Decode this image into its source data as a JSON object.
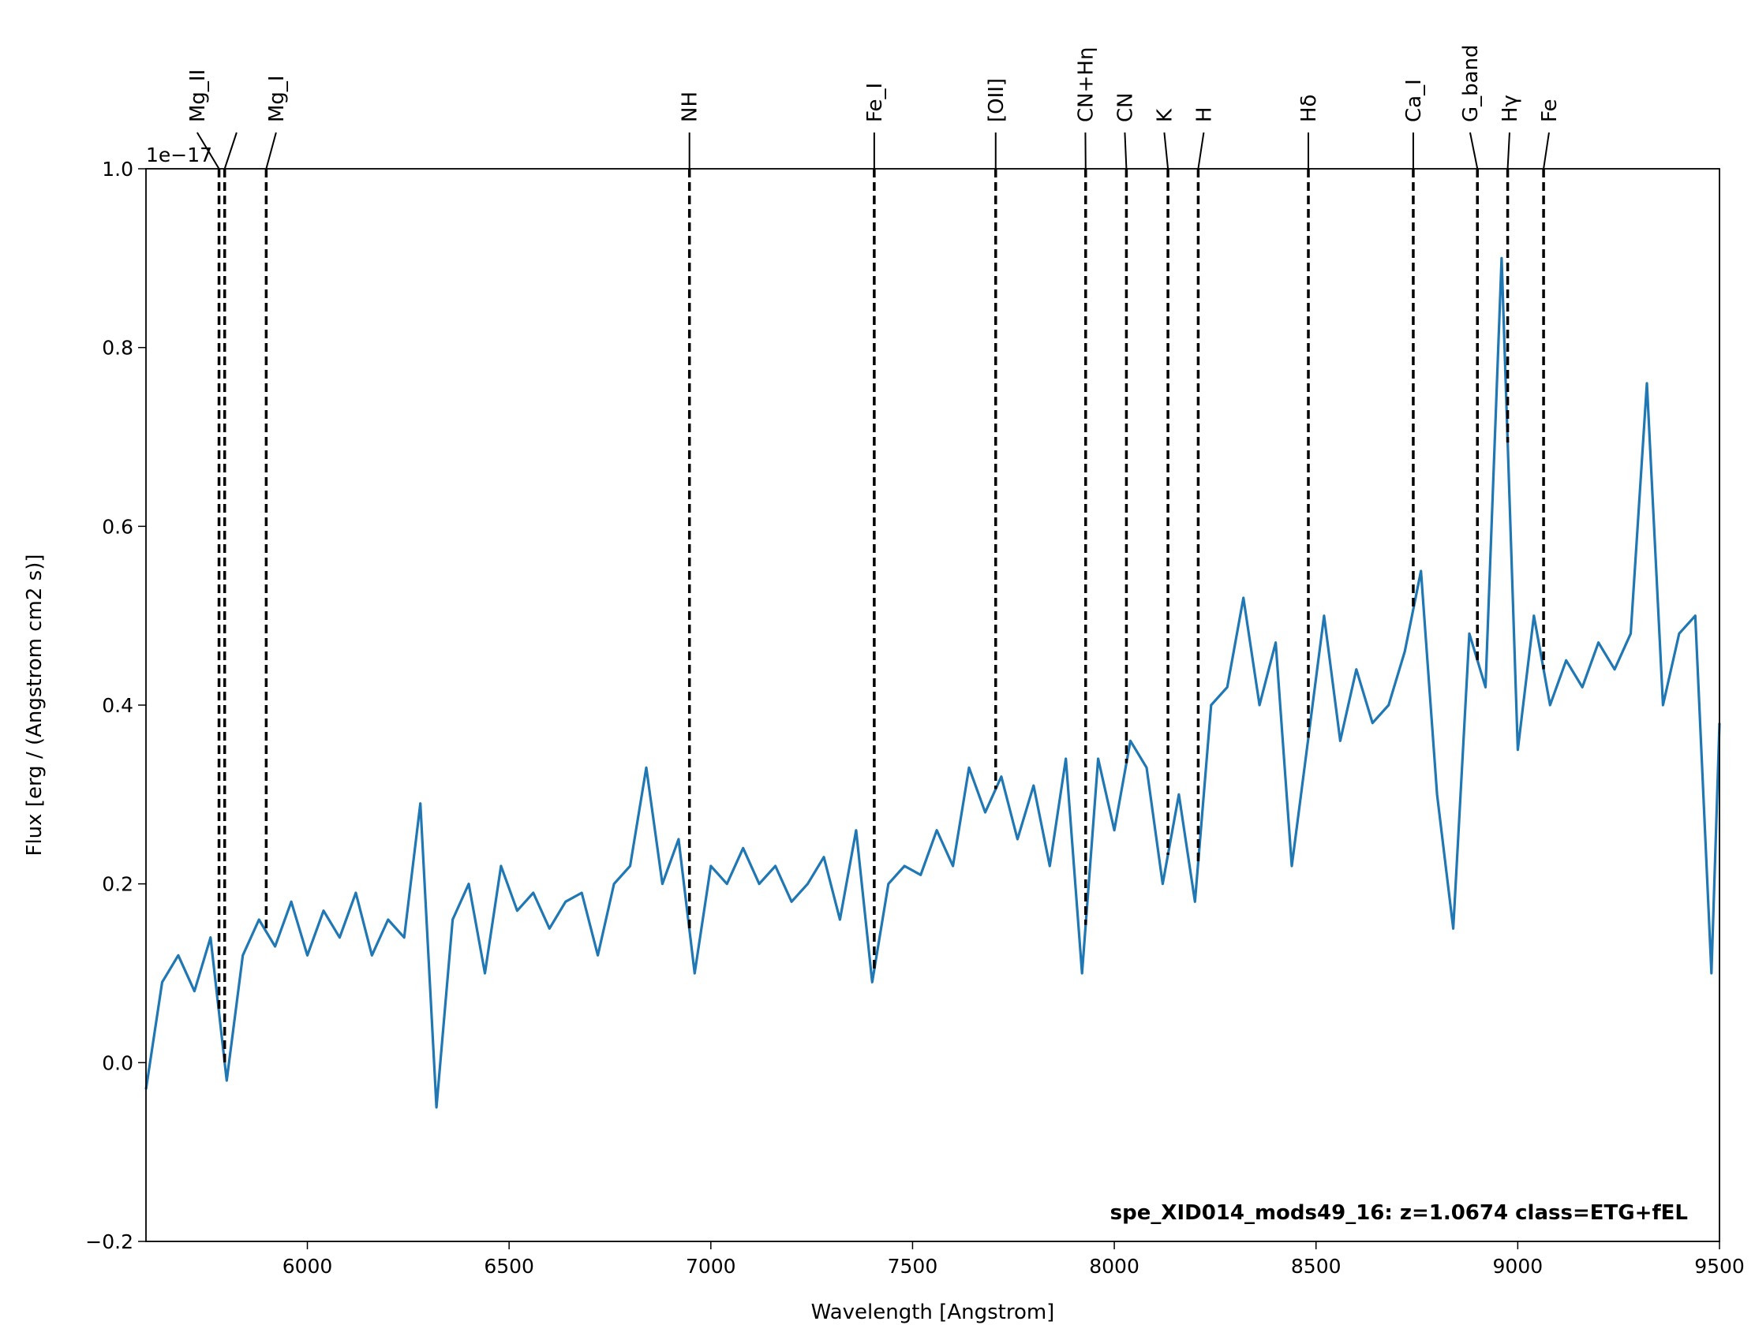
{
  "chart_data": {
    "type": "line",
    "title": "spe_XID014_mods49_16: z=1.0674 class=ETG+fEL",
    "title_color": "#ffa500",
    "xlabel": "Wavelength [Angstrom]",
    "ylabel": "Flux [erg / (Angstrom cm2 s)]",
    "y_offset_text": "1e−17",
    "xlim": [
      5600,
      9500
    ],
    "ylim": [
      -0.2,
      1.0
    ],
    "xticks": [
      6000,
      6500,
      7000,
      7500,
      8000,
      8500,
      9000,
      9500
    ],
    "yticks": [
      {
        "value": -0.2,
        "label": "−0.2"
      },
      {
        "value": 0,
        "label": "0.0"
      },
      0.2,
      0.4,
      0.6,
      0.8,
      {
        "value": 1.0,
        "label": "1.0"
      }
    ],
    "grid": false,
    "series": [
      {
        "color": "#1f77b4",
        "x": [
          5600,
          5640,
          5680,
          5720,
          5760,
          5800,
          5840,
          5880,
          5920,
          5960,
          6000,
          6040,
          6080,
          6120,
          6160,
          6200,
          6240,
          6280,
          6320,
          6360,
          6400,
          6440,
          6480,
          6520,
          6560,
          6600,
          6640,
          6680,
          6720,
          6760,
          6800,
          6840,
          6880,
          6920,
          6960,
          7000,
          7040,
          7080,
          7120,
          7160,
          7200,
          7240,
          7280,
          7320,
          7360,
          7400,
          7440,
          7480,
          7520,
          7560,
          7600,
          7640,
          7680,
          7720,
          7760,
          7800,
          7840,
          7880,
          7920,
          7960,
          8000,
          8040,
          8080,
          8120,
          8160,
          8200,
          8240,
          8280,
          8320,
          8360,
          8400,
          8440,
          8480,
          8520,
          8560,
          8600,
          8640,
          8680,
          8720,
          8760,
          8800,
          8840,
          8880,
          8920,
          8960,
          9000,
          9040,
          9080,
          9120,
          9160,
          9200,
          9240,
          9280,
          9320,
          9360,
          9400,
          9440,
          9480,
          9500
        ],
        "values": [
          -0.03,
          0.09,
          0.12,
          0.08,
          0.14,
          -0.02,
          0.12,
          0.16,
          0.13,
          0.18,
          0.12,
          0.17,
          0.14,
          0.19,
          0.12,
          0.16,
          0.14,
          0.29,
          -0.05,
          0.16,
          0.2,
          0.1,
          0.22,
          0.17,
          0.19,
          0.15,
          0.18,
          0.19,
          0.12,
          0.2,
          0.22,
          0.33,
          0.2,
          0.25,
          0.1,
          0.22,
          0.2,
          0.24,
          0.2,
          0.22,
          0.18,
          0.2,
          0.23,
          0.16,
          0.26,
          0.09,
          0.2,
          0.22,
          0.21,
          0.26,
          0.22,
          0.33,
          0.28,
          0.32,
          0.25,
          0.31,
          0.22,
          0.34,
          0.1,
          0.34,
          0.26,
          0.36,
          0.33,
          0.2,
          0.3,
          0.18,
          0.4,
          0.42,
          0.52,
          0.4,
          0.47,
          0.22,
          0.36,
          0.5,
          0.36,
          0.44,
          0.38,
          0.4,
          0.46,
          0.55,
          0.3,
          0.15,
          0.48,
          0.42,
          0.9,
          0.35,
          0.5,
          0.4,
          0.45,
          0.42,
          0.47,
          0.44,
          0.48,
          0.76,
          0.4,
          0.48,
          0.5,
          0.1,
          0.38
        ]
      }
    ],
    "lines": [
      {
        "name": "Mg_II",
        "wavelength": 5781
      },
      {
        "name": null,
        "wavelength": 5795
      },
      {
        "name": "Mg_I",
        "wavelength": 5898
      },
      {
        "name": "NH",
        "wavelength": 6947
      },
      {
        "name": "Fe_I",
        "wavelength": 7405
      },
      {
        "name": "[OII]",
        "wavelength": 7706
      },
      {
        "name": "CN+Hη",
        "wavelength": 7929
      },
      {
        "name": "CN",
        "wavelength": 8030
      },
      {
        "name": "K",
        "wavelength": 8133
      },
      {
        "name": "H",
        "wavelength": 8208
      },
      {
        "name": "Hδ",
        "wavelength": 8481
      },
      {
        "name": "Ca_I",
        "wavelength": 8741
      },
      {
        "name": "G_band",
        "wavelength": 8900
      },
      {
        "name": "Hγ",
        "wavelength": 8975
      },
      {
        "name": "Fe",
        "wavelength": 9064
      }
    ]
  }
}
